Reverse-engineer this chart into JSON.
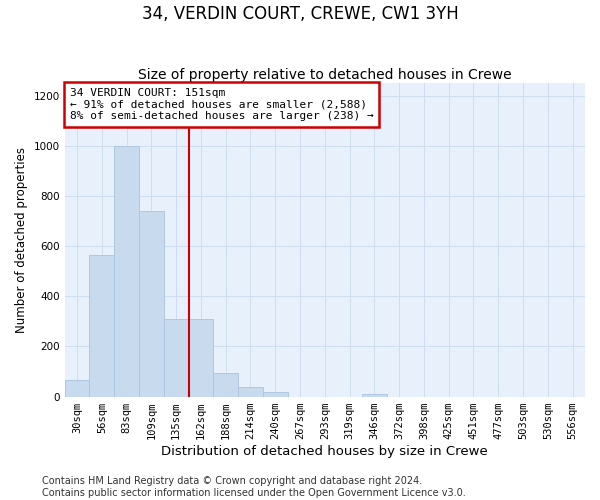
{
  "title": "34, VERDIN COURT, CREWE, CW1 3YH",
  "subtitle": "Size of property relative to detached houses in Crewe",
  "xlabel": "Distribution of detached houses by size in Crewe",
  "ylabel": "Number of detached properties",
  "footer1": "Contains HM Land Registry data © Crown copyright and database right 2024.",
  "footer2": "Contains public sector information licensed under the Open Government Licence v3.0.",
  "categories": [
    "30sqm",
    "56sqm",
    "83sqm",
    "109sqm",
    "135sqm",
    "162sqm",
    "188sqm",
    "214sqm",
    "240sqm",
    "267sqm",
    "293sqm",
    "319sqm",
    "346sqm",
    "372sqm",
    "398sqm",
    "425sqm",
    "451sqm",
    "477sqm",
    "503sqm",
    "530sqm",
    "556sqm"
  ],
  "values": [
    65,
    565,
    1000,
    740,
    310,
    310,
    95,
    40,
    20,
    0,
    0,
    0,
    10,
    0,
    0,
    0,
    0,
    0,
    0,
    0,
    0
  ],
  "bar_color": "#c8daee",
  "bar_edge_color": "#a8c4e0",
  "vline_x": 4.5,
  "vline_color": "#cc0000",
  "annotation_line1": "34 VERDIN COURT: 151sqm",
  "annotation_line2": "← 91% of detached houses are smaller (2,588)",
  "annotation_line3": "8% of semi-detached houses are larger (238) →",
  "annotation_box_edgecolor": "#cc0000",
  "ylim": [
    0,
    1250
  ],
  "yticks": [
    0,
    200,
    400,
    600,
    800,
    1000,
    1200
  ],
  "title_fontsize": 12,
  "subtitle_fontsize": 10,
  "xlabel_fontsize": 9.5,
  "ylabel_fontsize": 8.5,
  "tick_fontsize": 7.5,
  "annotation_fontsize": 8,
  "footer_fontsize": 7,
  "background_color": "#ffffff",
  "plot_bg_color": "#e8f0fb",
  "grid_color": "#cfddf0"
}
